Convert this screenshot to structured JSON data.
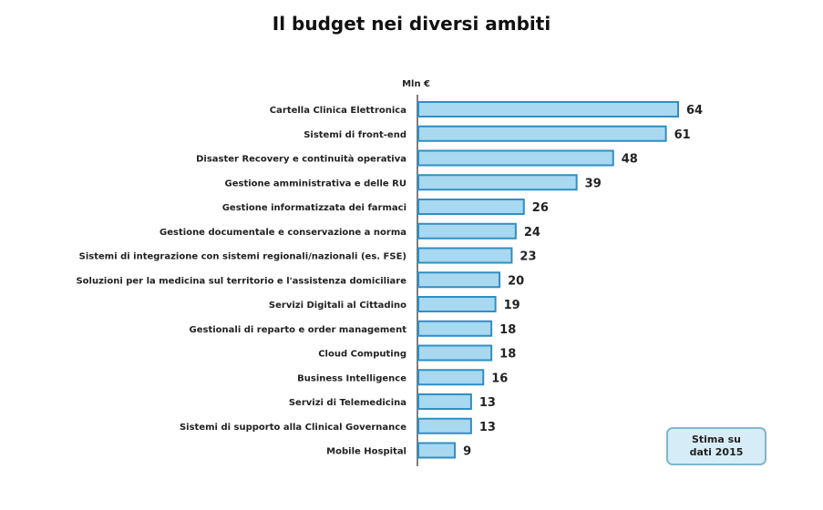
{
  "chart_data": {
    "type": "bar",
    "orientation": "horizontal",
    "title": "Il budget nei diversi ambiti",
    "unit": "Mln €",
    "categories": [
      "Cartella Clinica Elettronica",
      "Sistemi di front-end",
      "Disaster Recovery e continuità operativa",
      "Gestione amministrativa e delle RU",
      "Gestione informatizzata dei farmaci",
      "Gestione documentale e conservazione a norma",
      "Sistemi di integrazione con sistemi regionali/nazionali (es. FSE)",
      "Soluzioni per la medicina sul territorio e l'assistenza domiciliare",
      "Servizi Digitali al Cittadino",
      "Gestionali di reparto e order management",
      "Cloud Computing",
      "Business Intelligence",
      "Servizi di Telemedicina",
      "Sistemi di supporto alla Clinical Governance",
      "Mobile Hospital"
    ],
    "values": [
      64,
      61,
      48,
      39,
      26,
      24,
      23,
      20,
      19,
      18,
      18,
      16,
      13,
      13,
      9
    ],
    "xlim": [
      0,
      64
    ],
    "grid": false,
    "legend": "none",
    "colors": {
      "bar_fill": "#a9d8f1",
      "bar_stroke": "#2f8fc4",
      "axis": "#555555"
    }
  },
  "note": {
    "line1": "Stima su",
    "line2": "dati 2015"
  }
}
